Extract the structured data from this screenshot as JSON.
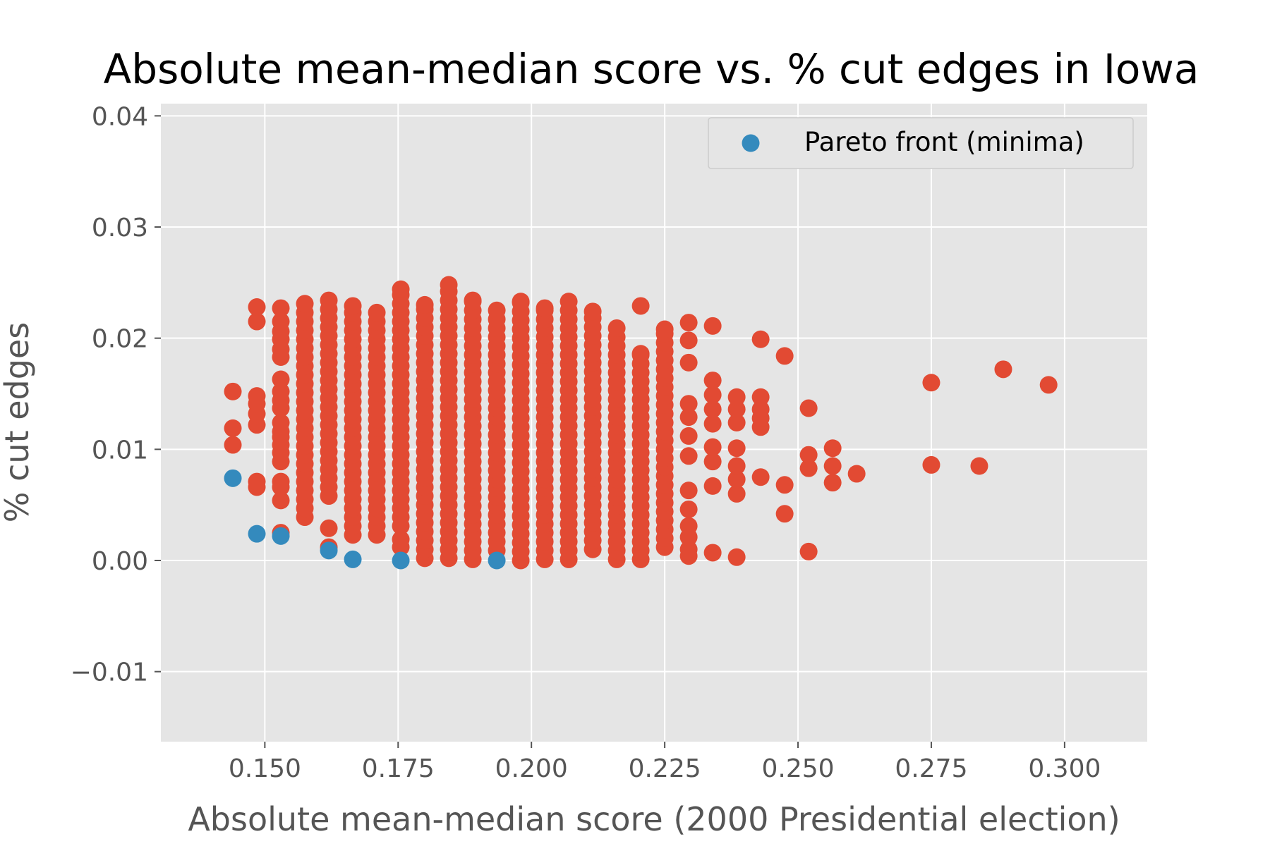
{
  "chart_data": {
    "type": "scatter",
    "title": "Absolute mean-median score vs. % cut edges in Iowa",
    "xlabel": "Absolute mean-median score (2000 Presidential election)",
    "ylabel": "% cut edges",
    "xlim": [
      0.1305,
      0.3155
    ],
    "ylim": [
      -0.0163,
      0.0411
    ],
    "xticks": [
      0.15,
      0.175,
      0.2,
      0.225,
      0.25,
      0.275,
      0.3
    ],
    "xtick_labels": [
      "0.150",
      "0.175",
      "0.200",
      "0.225",
      "0.250",
      "0.275",
      "0.300"
    ],
    "yticks": [
      -0.01,
      0.0,
      0.01,
      0.02,
      0.03,
      0.04
    ],
    "ytick_labels": [
      "−0.01",
      "0.00",
      "0.01",
      "0.02",
      "0.03",
      "0.04"
    ],
    "grid": true,
    "legend_position": "top-right",
    "colors": {
      "background": "#e5e5e5",
      "grid": "#ffffff",
      "all_plans": "#e24a33",
      "pareto": "#348abd"
    },
    "series": [
      {
        "color": "#e24a33",
        "columns": [
          {
            "x": 0.144,
            "y": [
              0.0104,
              0.0119,
              0.0152
            ]
          },
          {
            "x": 0.1485,
            "y": [
              0.0066,
              0.0071,
              0.0122,
              0.0132,
              0.0141,
              0.0148,
              0.0215,
              0.0228
            ]
          },
          {
            "x": 0.153,
            "y": [
              0.0025,
              0.0054,
              0.0066,
              0.0071,
              0.0089,
              0.0097,
              0.0104,
              0.0111,
              0.0116,
              0.0124,
              0.0137,
              0.0144,
              0.0152,
              0.0163,
              0.0183,
              0.019,
              0.0199,
              0.0206,
              0.0215,
              0.0227
            ]
          },
          {
            "x": 0.1575,
            "rangeFrom": 0.0039,
            "rangeTo": 0.0231,
            "step": 0.0008
          },
          {
            "x": 0.162,
            "y": [
              0.0012,
              0.0029
            ]
          },
          {
            "x": 0.162,
            "rangeFrom": 0.0058,
            "rangeTo": 0.0234,
            "step": 0.0008
          },
          {
            "x": 0.1665,
            "rangeFrom": 0.0023,
            "rangeTo": 0.0229,
            "step": 0.0008
          },
          {
            "x": 0.171,
            "rangeFrom": 0.0023,
            "rangeTo": 0.0223,
            "step": 0.0008
          },
          {
            "x": 0.1755,
            "y": [
              0.0012,
              0.0019
            ]
          },
          {
            "x": 0.1755,
            "rangeFrom": 0.0031,
            "rangeTo": 0.0244,
            "step": 0.0008
          },
          {
            "x": 0.18,
            "rangeFrom": 0.0002,
            "rangeTo": 0.023,
            "step": 0.0008
          },
          {
            "x": 0.1845,
            "rangeFrom": 0.0002,
            "rangeTo": 0.0248,
            "step": 0.0008
          },
          {
            "x": 0.189,
            "rangeFrom": 0.0001,
            "rangeTo": 0.0234,
            "step": 0.0008
          },
          {
            "x": 0.1935,
            "rangeFrom": 0.0009,
            "rangeTo": 0.0225,
            "step": 0.0008
          },
          {
            "x": 0.198,
            "rangeFrom": 0.0,
            "rangeTo": 0.0233,
            "step": 0.0008
          },
          {
            "x": 0.2025,
            "rangeFrom": 0.0001,
            "rangeTo": 0.0227,
            "step": 0.0008
          },
          {
            "x": 0.207,
            "rangeFrom": 0.0001,
            "rangeTo": 0.0233,
            "step": 0.0008
          },
          {
            "x": 0.2115,
            "rangeFrom": 0.001,
            "rangeTo": 0.0224,
            "step": 0.0008
          },
          {
            "x": 0.216,
            "rangeFrom": 0.0001,
            "rangeTo": 0.0209,
            "step": 0.0008
          },
          {
            "x": 0.2205,
            "y": [
              0.0229
            ]
          },
          {
            "x": 0.2205,
            "rangeFrom": 0.0001,
            "rangeTo": 0.0186,
            "step": 0.0008
          },
          {
            "x": 0.225,
            "rangeFrom": 0.0012,
            "rangeTo": 0.0208,
            "step": 0.0008
          },
          {
            "x": 0.2295,
            "y": [
              0.0004,
              0.001,
              0.0021,
              0.0031,
              0.0046,
              0.0063,
              0.0094,
              0.0112,
              0.0129,
              0.0141,
              0.0178,
              0.0198,
              0.0214
            ]
          },
          {
            "x": 0.234,
            "y": [
              0.0007,
              0.0067,
              0.0089,
              0.0102,
              0.0123,
              0.0136,
              0.0149,
              0.0162,
              0.0211
            ]
          },
          {
            "x": 0.2385,
            "y": [
              0.0003,
              0.006,
              0.0073,
              0.0085,
              0.0101,
              0.0124,
              0.0136,
              0.0147
            ]
          },
          {
            "x": 0.243,
            "y": [
              0.0075,
              0.012,
              0.0128,
              0.0136,
              0.0147,
              0.0199
            ]
          },
          {
            "x": 0.2475,
            "y": [
              0.0042,
              0.0068,
              0.0184
            ]
          },
          {
            "x": 0.252,
            "y": [
              0.0008,
              0.0083,
              0.0095,
              0.0137
            ]
          },
          {
            "x": 0.2565,
            "y": [
              0.007,
              0.0085,
              0.0101
            ]
          },
          {
            "x": 0.261,
            "y": [
              0.0078
            ]
          },
          {
            "x": 0.275,
            "y": [
              0.0086,
              0.016
            ]
          },
          {
            "x": 0.284,
            "y": [
              0.0085
            ]
          },
          {
            "x": 0.2885,
            "y": [
              0.0172
            ]
          },
          {
            "x": 0.297,
            "y": [
              0.0158
            ]
          }
        ]
      },
      {
        "name": "Pareto front (minima)",
        "color": "#348abd",
        "points": [
          {
            "x": 0.144,
            "y": 0.0074
          },
          {
            "x": 0.1485,
            "y": 0.0024
          },
          {
            "x": 0.153,
            "y": 0.0022
          },
          {
            "x": 0.162,
            "y": 0.0009
          },
          {
            "x": 0.1665,
            "y": 0.0001
          },
          {
            "x": 0.1755,
            "y": 0.0
          },
          {
            "x": 0.1935,
            "y": 0.0
          }
        ]
      }
    ]
  }
}
